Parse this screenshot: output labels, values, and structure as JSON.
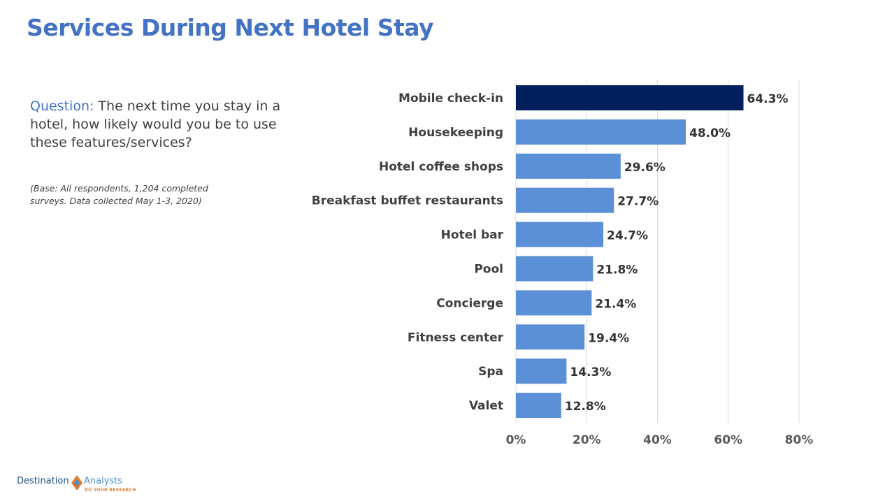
{
  "title": "Services During Next Hotel Stay",
  "question": {
    "label": "Question:",
    "text": " The next time you stay in a hotel, how likely would you be to use these features/services?"
  },
  "base_note": "(Base: All respondents, 1,204 completed surveys. Data collected May 1-3, 2020)",
  "logo": {
    "word1": "Destination",
    "word2": "Analysts",
    "tagline": "DO YOUR RESEARCH"
  },
  "colors": {
    "highlight_bar": "#001f5c",
    "bar": "#5b8fd6",
    "gridline": "#d9d9d9",
    "title": "#4472c4"
  },
  "chart_data": {
    "type": "bar",
    "orientation": "horizontal",
    "categories": [
      "Mobile check-in",
      "Housekeeping",
      "Hotel coffee shops",
      "Breakfast buffet restaurants",
      "Hotel bar",
      "Pool",
      "Concierge",
      "Fitness center",
      "Spa",
      "Valet"
    ],
    "values": [
      64.3,
      48.0,
      29.6,
      27.7,
      24.7,
      21.8,
      21.4,
      19.4,
      14.3,
      12.8
    ],
    "value_labels": [
      "64.3%",
      "48.0%",
      "29.6%",
      "27.7%",
      "24.7%",
      "21.8%",
      "21.4%",
      "19.4%",
      "14.3%",
      "12.8%"
    ],
    "highlight_index": 0,
    "xlim": [
      0,
      80
    ],
    "xticks": [
      0,
      20,
      40,
      60,
      80
    ],
    "xtick_labels": [
      "0%",
      "20%",
      "40%",
      "60%",
      "80%"
    ],
    "grid": true,
    "legend": "none"
  }
}
